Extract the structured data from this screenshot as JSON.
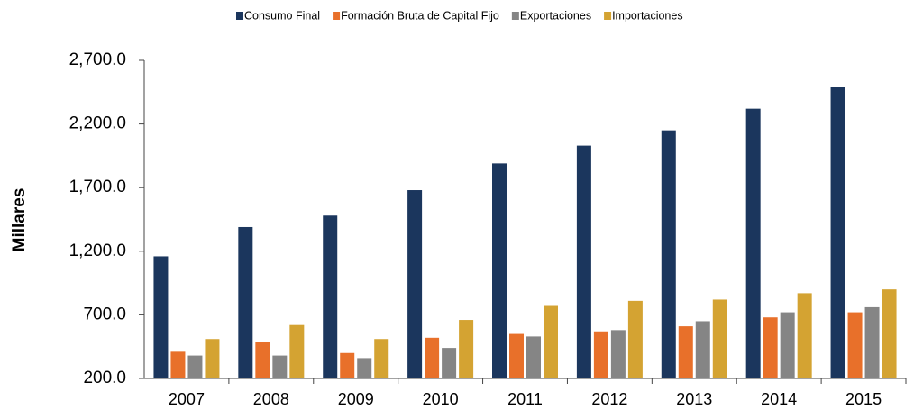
{
  "chart_data": {
    "type": "bar",
    "y_label": "Millares",
    "categories": [
      "2007",
      "2008",
      "2009",
      "2010",
      "2011",
      "2012",
      "2013",
      "2014",
      "2015"
    ],
    "series": [
      {
        "name": "Consumo Final",
        "color": "#1b365d",
        "values": [
          1160,
          1390,
          1480,
          1680,
          1890,
          2030,
          2150,
          2320,
          2490
        ]
      },
      {
        "name": "Formación Bruta de Capital Fijo",
        "color": "#e8702a",
        "values": [
          410,
          490,
          400,
          520,
          550,
          570,
          610,
          680,
          720
        ]
      },
      {
        "name": "Exportaciones",
        "color": "#858585",
        "values": [
          380,
          380,
          360,
          440,
          530,
          580,
          650,
          720,
          760
        ]
      },
      {
        "name": "Importaciones",
        "color": "#d4a332",
        "values": [
          510,
          620,
          510,
          660,
          770,
          810,
          820,
          870,
          900
        ]
      }
    ],
    "ylim": [
      200,
      2700
    ],
    "yticks": [
      {
        "value": 200,
        "label": "200.0"
      },
      {
        "value": 700,
        "label": "700.0"
      },
      {
        "value": 1200,
        "label": "1,200.0"
      },
      {
        "value": 1700,
        "label": "1,700.0"
      },
      {
        "value": 2200,
        "label": "2,200.0"
      },
      {
        "value": 2700,
        "label": "2,700.0"
      }
    ],
    "legend": "top"
  }
}
